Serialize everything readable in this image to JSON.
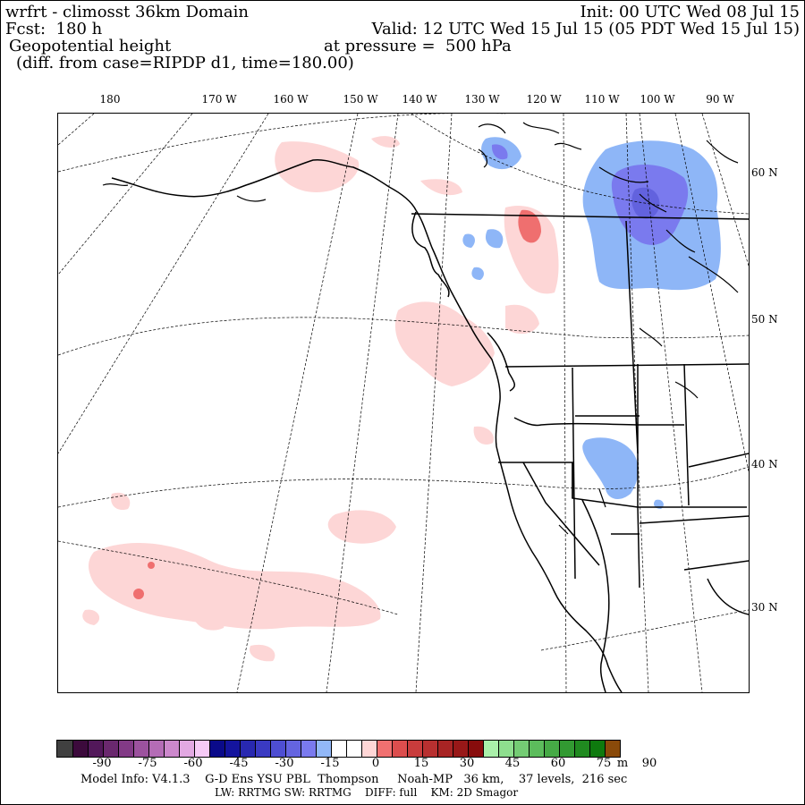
{
  "header": {
    "line1_left": "wrfrt - climosst 36km Domain",
    "line1_right": "Init: 00 UTC Wed 08 Jul 15",
    "line2_left": "Fcst:  180 h",
    "line2_right": "Valid: 12 UTC Wed 15 Jul 15 (05 PDT Wed 15 Jul 15)",
    "line3_left": "Geopotential height",
    "line3_right": "at pressure =  500 hPa",
    "line4_left": "(diff. from case=RIPDP d1, time=180.00)"
  },
  "longitude_labels": [
    "180",
    "170 W",
    "160 W",
    "150 W",
    "140 W",
    "130 W",
    "120 W",
    "110 W",
    "100 W",
    "90 W"
  ],
  "latitude_labels": [
    "60 N",
    "50 N",
    "40 N",
    "30 N"
  ],
  "colorbar": {
    "colors": [
      "#404040",
      "#3c0a3c",
      "#52185a",
      "#6a286e",
      "#823a86",
      "#9c529e",
      "#b46cb6",
      "#cc88cc",
      "#e2a8e2",
      "#f6caf6",
      "#0a0a8a",
      "#14149e",
      "#2828b0",
      "#3a3ac2",
      "#4e4ed2",
      "#6464e0",
      "#7a7aee",
      "#92b8f8",
      "#ffffff",
      "#ffffff",
      "#ffd6d6",
      "#f07070",
      "#dc4e4e",
      "#c83c3c",
      "#b83030",
      "#a82424",
      "#981818",
      "#880c0c",
      "#aaf0aa",
      "#8ede8e",
      "#74cc74",
      "#5cbc5c",
      "#46aa46",
      "#329a32",
      "#208a20",
      "#0e7a0e",
      "#8a4a0a"
    ],
    "tick_labels": [
      "-90",
      "-75",
      "-60",
      "-45",
      "-30",
      "-15",
      "0",
      "15",
      "30",
      "45",
      "60",
      "75",
      "90",
      "m"
    ]
  },
  "footer": {
    "line1": "Model Info: V4.1.3    G-D Ens YSU PBL  Thompson     Noah-MP   36 km,    37 levels,  216 sec",
    "line2": "LW: RRTMG SW: RRTMG    DIFF: full    KM: 2D Smagor"
  },
  "colors": {
    "pos_light": "#fdd6d6",
    "pos_strong": "#ef6f6f",
    "neg_light": "#8eb6f7",
    "neg_mid": "#7a7aee",
    "neg_dark": "#6262de"
  }
}
